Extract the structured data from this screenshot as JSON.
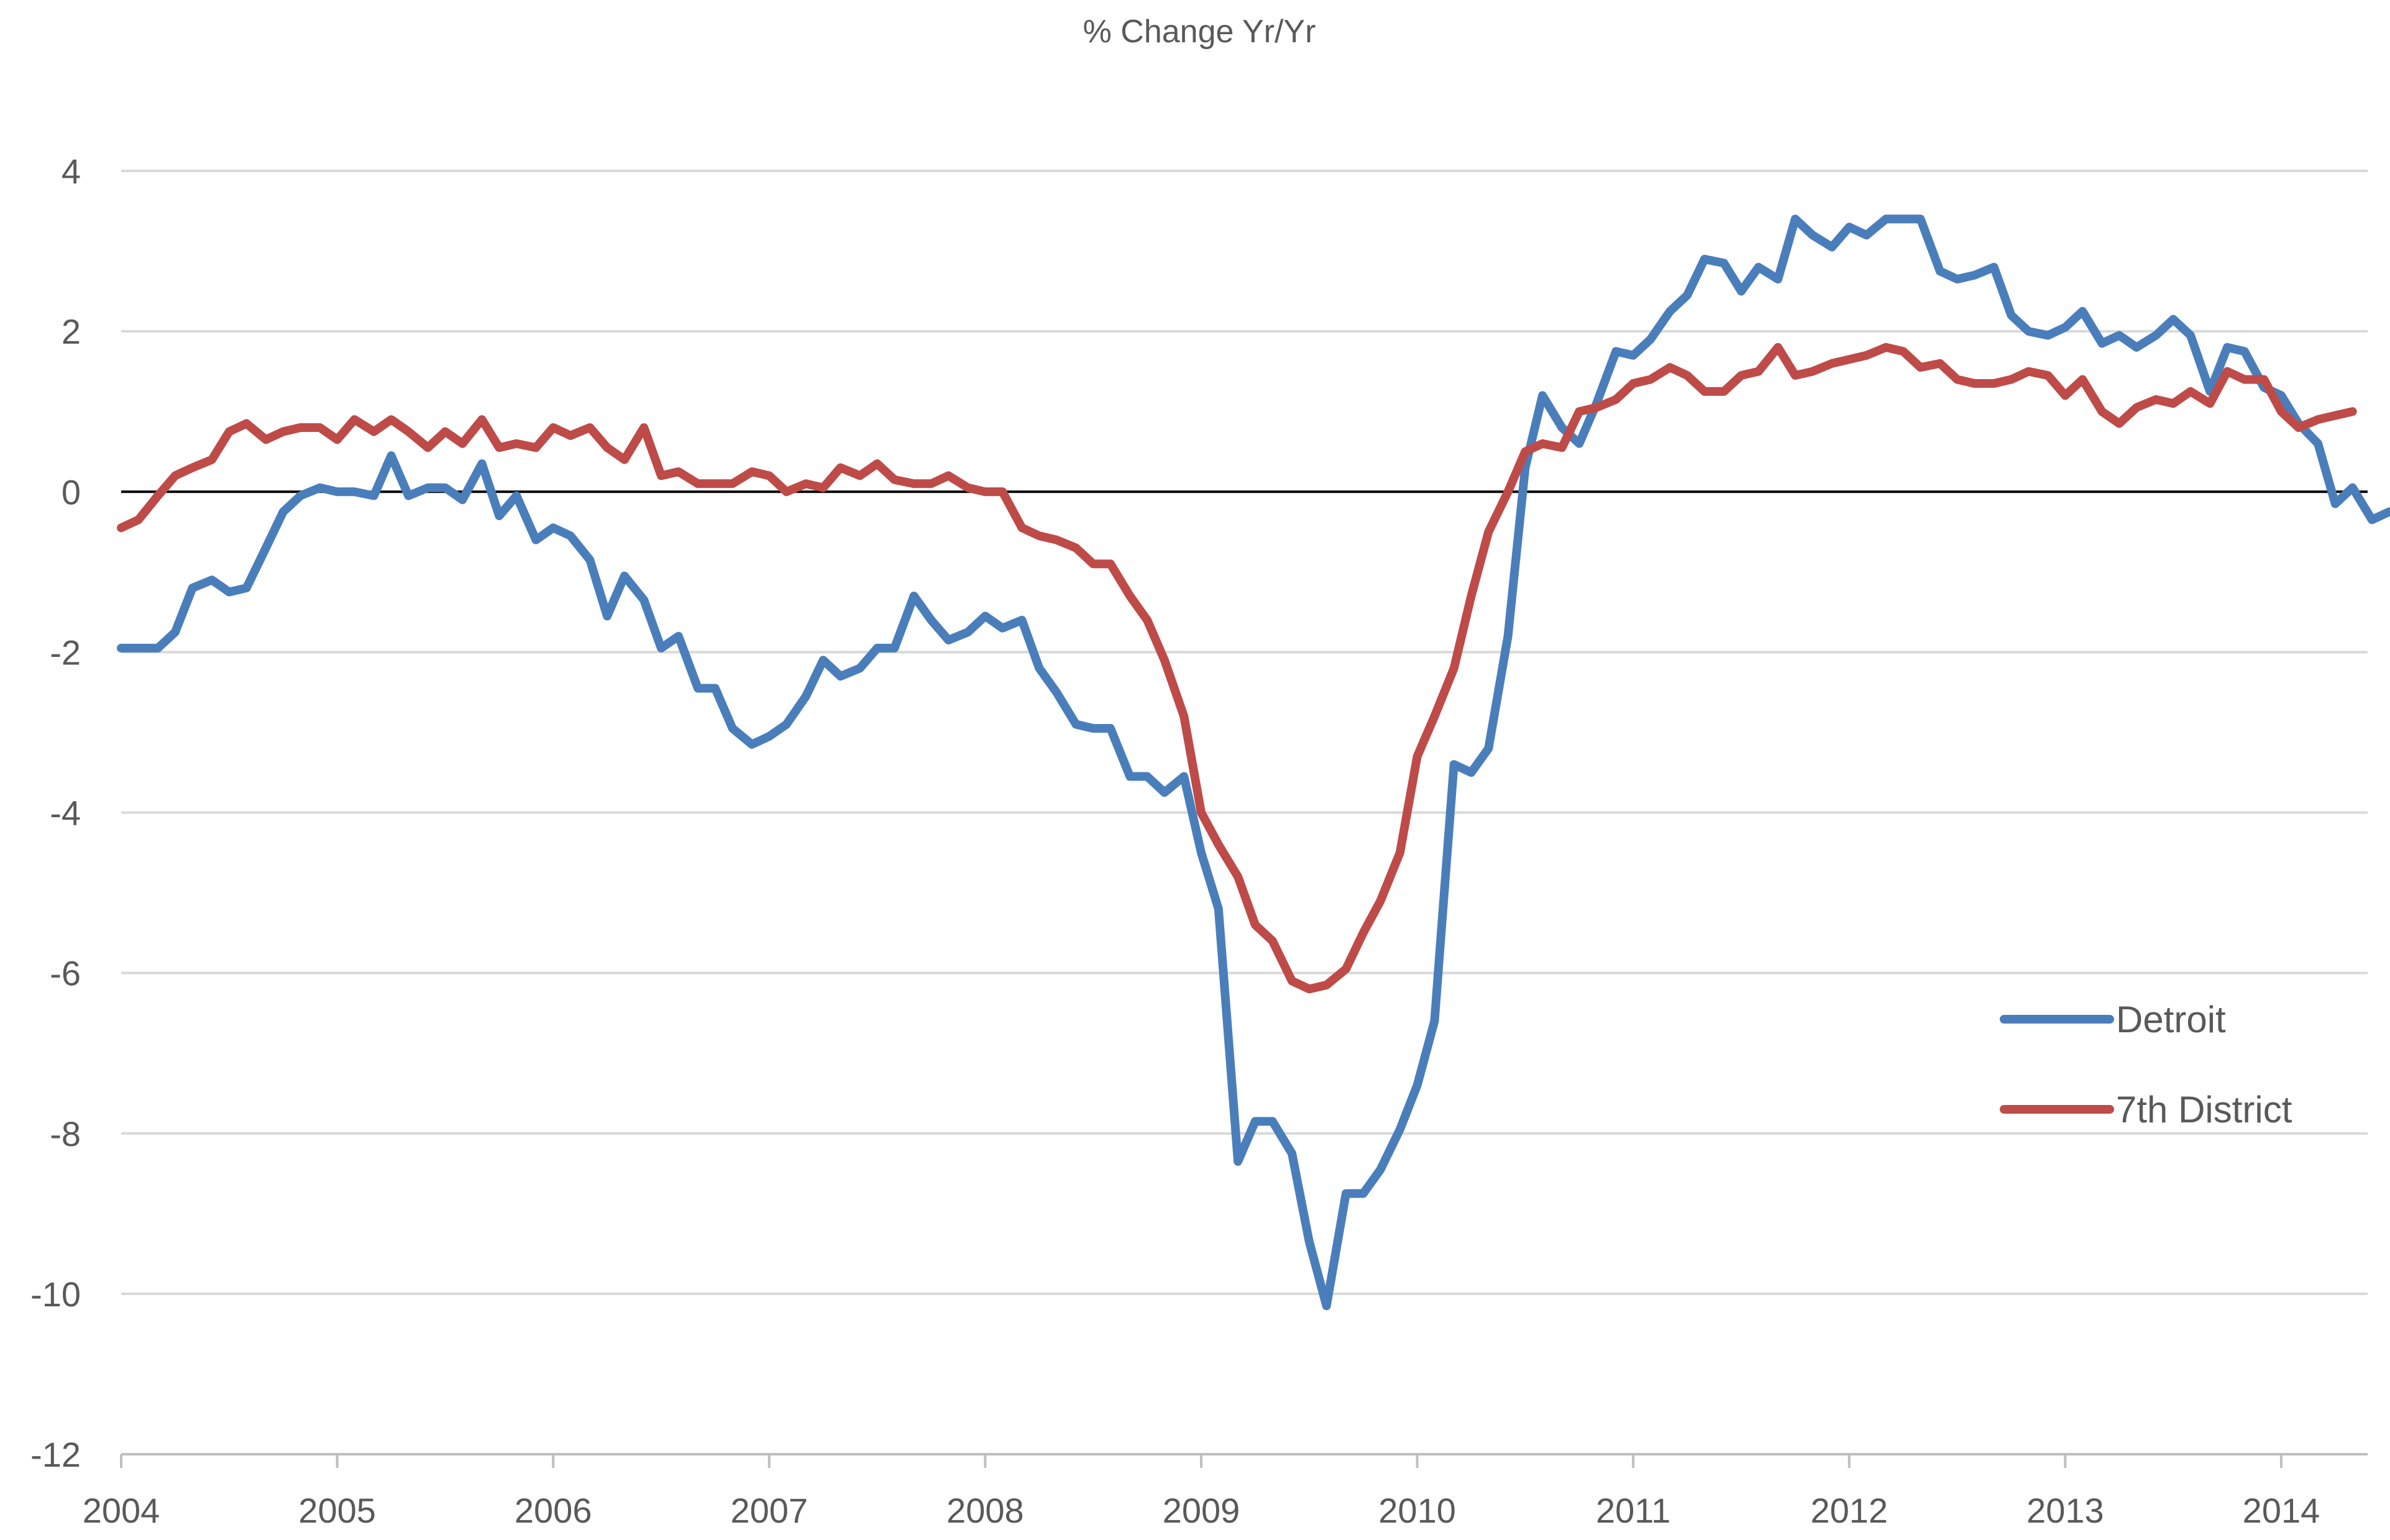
{
  "chart_data": {
    "type": "line",
    "title": "% Change Yr/Yr",
    "xlabel": "",
    "ylabel": "",
    "ylim": [
      -12,
      4
    ],
    "xlim": [
      2004,
      2014.4
    ],
    "yticks": [
      4,
      2,
      0,
      -2,
      -4,
      -6,
      -8,
      -10,
      -12
    ],
    "xticks": [
      "2004",
      "2005",
      "2006",
      "2007",
      "2008",
      "2009",
      "2010",
      "2011",
      "2012",
      "2013",
      "2014"
    ],
    "grid": true,
    "legend_position": "lower-right",
    "series": [
      {
        "name": "Detroit",
        "color": "#4a7ebb",
        "points": [
          [
            2004.0,
            -1.95
          ],
          [
            2004.17,
            -1.95
          ],
          [
            2004.25,
            -1.75
          ],
          [
            2004.33,
            -1.2
          ],
          [
            2004.42,
            -1.1
          ],
          [
            2004.5,
            -1.25
          ],
          [
            2004.58,
            -1.2
          ],
          [
            2004.67,
            -0.7
          ],
          [
            2004.75,
            -0.25
          ],
          [
            2004.83,
            -0.05
          ],
          [
            2004.92,
            0.05
          ],
          [
            2005.0,
            0.0
          ],
          [
            2005.08,
            0.0
          ],
          [
            2005.17,
            -0.05
          ],
          [
            2005.25,
            0.45
          ],
          [
            2005.33,
            -0.05
          ],
          [
            2005.42,
            0.05
          ],
          [
            2005.5,
            0.05
          ],
          [
            2005.58,
            -0.1
          ],
          [
            2005.67,
            0.35
          ],
          [
            2005.75,
            -0.3
          ],
          [
            2005.83,
            -0.05
          ],
          [
            2005.92,
            -0.6
          ],
          [
            2006.0,
            -0.45
          ],
          [
            2006.08,
            -0.55
          ],
          [
            2006.17,
            -0.85
          ],
          [
            2006.25,
            -1.55
          ],
          [
            2006.33,
            -1.05
          ],
          [
            2006.42,
            -1.35
          ],
          [
            2006.5,
            -1.95
          ],
          [
            2006.58,
            -1.8
          ],
          [
            2006.67,
            -2.45
          ],
          [
            2006.75,
            -2.45
          ],
          [
            2006.83,
            -2.95
          ],
          [
            2006.92,
            -3.15
          ],
          [
            2007.0,
            -3.05
          ],
          [
            2007.08,
            -2.9
          ],
          [
            2007.17,
            -2.55
          ],
          [
            2007.25,
            -2.1
          ],
          [
            2007.33,
            -2.3
          ],
          [
            2007.42,
            -2.2
          ],
          [
            2007.5,
            -1.95
          ],
          [
            2007.58,
            -1.95
          ],
          [
            2007.67,
            -1.3
          ],
          [
            2007.75,
            -1.6
          ],
          [
            2007.83,
            -1.85
          ],
          [
            2007.92,
            -1.75
          ],
          [
            2008.0,
            -1.55
          ],
          [
            2008.08,
            -1.7
          ],
          [
            2008.17,
            -1.6
          ],
          [
            2008.25,
            -2.2
          ],
          [
            2008.33,
            -2.5
          ],
          [
            2008.42,
            -2.9
          ],
          [
            2008.5,
            -2.95
          ],
          [
            2008.58,
            -2.95
          ],
          [
            2008.67,
            -3.55
          ],
          [
            2008.75,
            -3.55
          ],
          [
            2008.83,
            -3.75
          ],
          [
            2008.92,
            -3.55
          ],
          [
            2009.0,
            -4.5
          ],
          [
            2009.08,
            -5.2
          ],
          [
            2009.17,
            -8.35
          ],
          [
            2009.25,
            -7.85
          ],
          [
            2009.33,
            -7.85
          ],
          [
            2009.42,
            -8.25
          ],
          [
            2009.5,
            -9.35
          ],
          [
            2009.58,
            -10.15
          ],
          [
            2009.67,
            -8.75
          ],
          [
            2009.75,
            -8.75
          ],
          [
            2009.83,
            -8.45
          ],
          [
            2009.92,
            -7.95
          ],
          [
            2010.0,
            -7.4
          ],
          [
            2010.08,
            -6.6
          ],
          [
            2010.17,
            -3.4
          ],
          [
            2010.25,
            -3.5
          ],
          [
            2010.33,
            -3.2
          ],
          [
            2010.42,
            -1.8
          ],
          [
            2010.5,
            0.3
          ],
          [
            2010.58,
            1.2
          ],
          [
            2010.67,
            0.8
          ],
          [
            2010.75,
            0.6
          ],
          [
            2010.83,
            1.1
          ],
          [
            2010.92,
            1.75
          ],
          [
            2011.0,
            1.7
          ],
          [
            2011.08,
            1.9
          ],
          [
            2011.17,
            2.25
          ],
          [
            2011.25,
            2.45
          ],
          [
            2011.33,
            2.9
          ],
          [
            2011.42,
            2.85
          ],
          [
            2011.5,
            2.5
          ],
          [
            2011.58,
            2.8
          ],
          [
            2011.67,
            2.65
          ],
          [
            2011.75,
            3.4
          ],
          [
            2011.83,
            3.2
          ],
          [
            2011.92,
            3.05
          ],
          [
            2012.0,
            3.3
          ],
          [
            2012.08,
            3.2
          ],
          [
            2012.17,
            3.4
          ],
          [
            2012.25,
            3.4
          ],
          [
            2012.33,
            3.4
          ],
          [
            2012.42,
            2.75
          ],
          [
            2012.5,
            2.65
          ],
          [
            2012.58,
            2.7
          ],
          [
            2012.67,
            2.8
          ],
          [
            2012.75,
            2.2
          ],
          [
            2012.83,
            2.0
          ],
          [
            2012.92,
            1.95
          ],
          [
            2013.0,
            2.05
          ],
          [
            2013.08,
            2.25
          ],
          [
            2013.17,
            1.85
          ],
          [
            2013.25,
            1.95
          ],
          [
            2013.33,
            1.8
          ],
          [
            2013.42,
            1.95
          ],
          [
            2013.5,
            2.15
          ],
          [
            2013.58,
            1.95
          ],
          [
            2013.67,
            1.25
          ],
          [
            2013.75,
            1.8
          ],
          [
            2013.83,
            1.75
          ],
          [
            2013.92,
            1.3
          ],
          [
            2014.0,
            1.2
          ],
          [
            2014.08,
            0.85
          ],
          [
            2014.17,
            0.6
          ],
          [
            2014.25,
            -0.15
          ],
          [
            2014.33,
            0.05
          ],
          [
            2014.42,
            -0.35
          ],
          [
            2014.5,
            -0.25
          ]
        ]
      },
      {
        "name": "7th District",
        "color": "#be4b48",
        "points": [
          [
            2004.0,
            -0.45
          ],
          [
            2004.08,
            -0.35
          ],
          [
            2004.17,
            -0.05
          ],
          [
            2004.25,
            0.2
          ],
          [
            2004.33,
            0.3
          ],
          [
            2004.42,
            0.4
          ],
          [
            2004.5,
            0.75
          ],
          [
            2004.58,
            0.85
          ],
          [
            2004.67,
            0.65
          ],
          [
            2004.75,
            0.75
          ],
          [
            2004.83,
            0.8
          ],
          [
            2004.92,
            0.8
          ],
          [
            2005.0,
            0.65
          ],
          [
            2005.08,
            0.9
          ],
          [
            2005.17,
            0.75
          ],
          [
            2005.25,
            0.9
          ],
          [
            2005.33,
            0.75
          ],
          [
            2005.42,
            0.55
          ],
          [
            2005.5,
            0.75
          ],
          [
            2005.58,
            0.6
          ],
          [
            2005.67,
            0.9
          ],
          [
            2005.75,
            0.55
          ],
          [
            2005.83,
            0.6
          ],
          [
            2005.92,
            0.55
          ],
          [
            2006.0,
            0.8
          ],
          [
            2006.08,
            0.7
          ],
          [
            2006.17,
            0.8
          ],
          [
            2006.25,
            0.55
          ],
          [
            2006.33,
            0.4
          ],
          [
            2006.42,
            0.8
          ],
          [
            2006.5,
            0.2
          ],
          [
            2006.58,
            0.25
          ],
          [
            2006.67,
            0.1
          ],
          [
            2006.75,
            0.1
          ],
          [
            2006.83,
            0.1
          ],
          [
            2006.92,
            0.25
          ],
          [
            2007.0,
            0.2
          ],
          [
            2007.08,
            0.0
          ],
          [
            2007.17,
            0.1
          ],
          [
            2007.25,
            0.05
          ],
          [
            2007.33,
            0.3
          ],
          [
            2007.42,
            0.2
          ],
          [
            2007.5,
            0.35
          ],
          [
            2007.58,
            0.15
          ],
          [
            2007.67,
            0.1
          ],
          [
            2007.75,
            0.1
          ],
          [
            2007.83,
            0.2
          ],
          [
            2007.92,
            0.05
          ],
          [
            2008.0,
            0.0
          ],
          [
            2008.08,
            0.0
          ],
          [
            2008.17,
            -0.45
          ],
          [
            2008.25,
            -0.55
          ],
          [
            2008.33,
            -0.6
          ],
          [
            2008.42,
            -0.7
          ],
          [
            2008.5,
            -0.9
          ],
          [
            2008.58,
            -0.9
          ],
          [
            2008.67,
            -1.3
          ],
          [
            2008.75,
            -1.6
          ],
          [
            2008.83,
            -2.1
          ],
          [
            2008.92,
            -2.8
          ],
          [
            2009.0,
            -4.0
          ],
          [
            2009.08,
            -4.4
          ],
          [
            2009.17,
            -4.8
          ],
          [
            2009.25,
            -5.4
          ],
          [
            2009.33,
            -5.6
          ],
          [
            2009.42,
            -6.1
          ],
          [
            2009.5,
            -6.2
          ],
          [
            2009.58,
            -6.15
          ],
          [
            2009.67,
            -5.95
          ],
          [
            2009.75,
            -5.5
          ],
          [
            2009.83,
            -5.1
          ],
          [
            2009.92,
            -4.5
          ],
          [
            2010.0,
            -3.3
          ],
          [
            2010.08,
            -2.8
          ],
          [
            2010.17,
            -2.2
          ],
          [
            2010.25,
            -1.3
          ],
          [
            2010.33,
            -0.5
          ],
          [
            2010.42,
            0.0
          ],
          [
            2010.5,
            0.5
          ],
          [
            2010.58,
            0.6
          ],
          [
            2010.67,
            0.55
          ],
          [
            2010.75,
            1.0
          ],
          [
            2010.83,
            1.05
          ],
          [
            2010.92,
            1.15
          ],
          [
            2011.0,
            1.35
          ],
          [
            2011.08,
            1.4
          ],
          [
            2011.17,
            1.55
          ],
          [
            2011.25,
            1.45
          ],
          [
            2011.33,
            1.25
          ],
          [
            2011.42,
            1.25
          ],
          [
            2011.5,
            1.45
          ],
          [
            2011.58,
            1.5
          ],
          [
            2011.67,
            1.8
          ],
          [
            2011.75,
            1.45
          ],
          [
            2011.83,
            1.5
          ],
          [
            2011.92,
            1.6
          ],
          [
            2012.0,
            1.65
          ],
          [
            2012.08,
            1.7
          ],
          [
            2012.17,
            1.8
          ],
          [
            2012.25,
            1.75
          ],
          [
            2012.33,
            1.55
          ],
          [
            2012.42,
            1.6
          ],
          [
            2012.5,
            1.4
          ],
          [
            2012.58,
            1.35
          ],
          [
            2012.67,
            1.35
          ],
          [
            2012.75,
            1.4
          ],
          [
            2012.83,
            1.5
          ],
          [
            2012.92,
            1.45
          ],
          [
            2013.0,
            1.2
          ],
          [
            2013.08,
            1.4
          ],
          [
            2013.17,
            1.0
          ],
          [
            2013.25,
            0.85
          ],
          [
            2013.33,
            1.05
          ],
          [
            2013.42,
            1.15
          ],
          [
            2013.5,
            1.1
          ],
          [
            2013.58,
            1.25
          ],
          [
            2013.67,
            1.1
          ],
          [
            2013.75,
            1.5
          ],
          [
            2013.83,
            1.4
          ],
          [
            2013.92,
            1.4
          ],
          [
            2014.0,
            1.0
          ],
          [
            2014.08,
            0.8
          ],
          [
            2014.17,
            0.9
          ],
          [
            2014.25,
            0.95
          ],
          [
            2014.33,
            1.0
          ]
        ]
      }
    ]
  }
}
